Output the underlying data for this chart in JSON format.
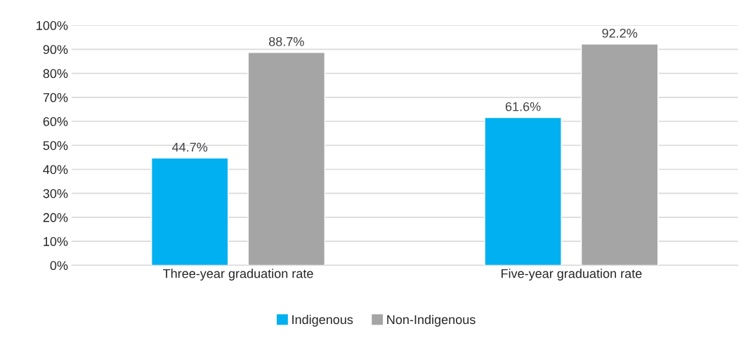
{
  "chart_data": {
    "type": "bar",
    "categories": [
      "Three-year graduation rate",
      "Five-year graduation rate"
    ],
    "series": [
      {
        "name": "Indigenous",
        "color": "#00b0f0",
        "values": [
          44.7,
          61.6
        ],
        "value_labels": [
          "44.7%",
          "61.6%"
        ]
      },
      {
        "name": "Non-Indigenous",
        "color": "#a5a5a5",
        "values": [
          88.7,
          92.2
        ],
        "value_labels": [
          "88.7%",
          "92.2%"
        ]
      }
    ],
    "ylim": [
      0,
      100
    ],
    "yticks": [
      {
        "value": 0,
        "label": "0%"
      },
      {
        "value": 10,
        "label": "10%"
      },
      {
        "value": 20,
        "label": "20%"
      },
      {
        "value": 30,
        "label": "30%"
      },
      {
        "value": 40,
        "label": "40%"
      },
      {
        "value": 50,
        "label": "50%"
      },
      {
        "value": 60,
        "label": "60%"
      },
      {
        "value": 70,
        "label": "70%"
      },
      {
        "value": 80,
        "label": "80%"
      },
      {
        "value": 90,
        "label": "90%"
      },
      {
        "value": 100,
        "label": "100%"
      }
    ],
    "grid": "y",
    "legend": "bottom"
  }
}
